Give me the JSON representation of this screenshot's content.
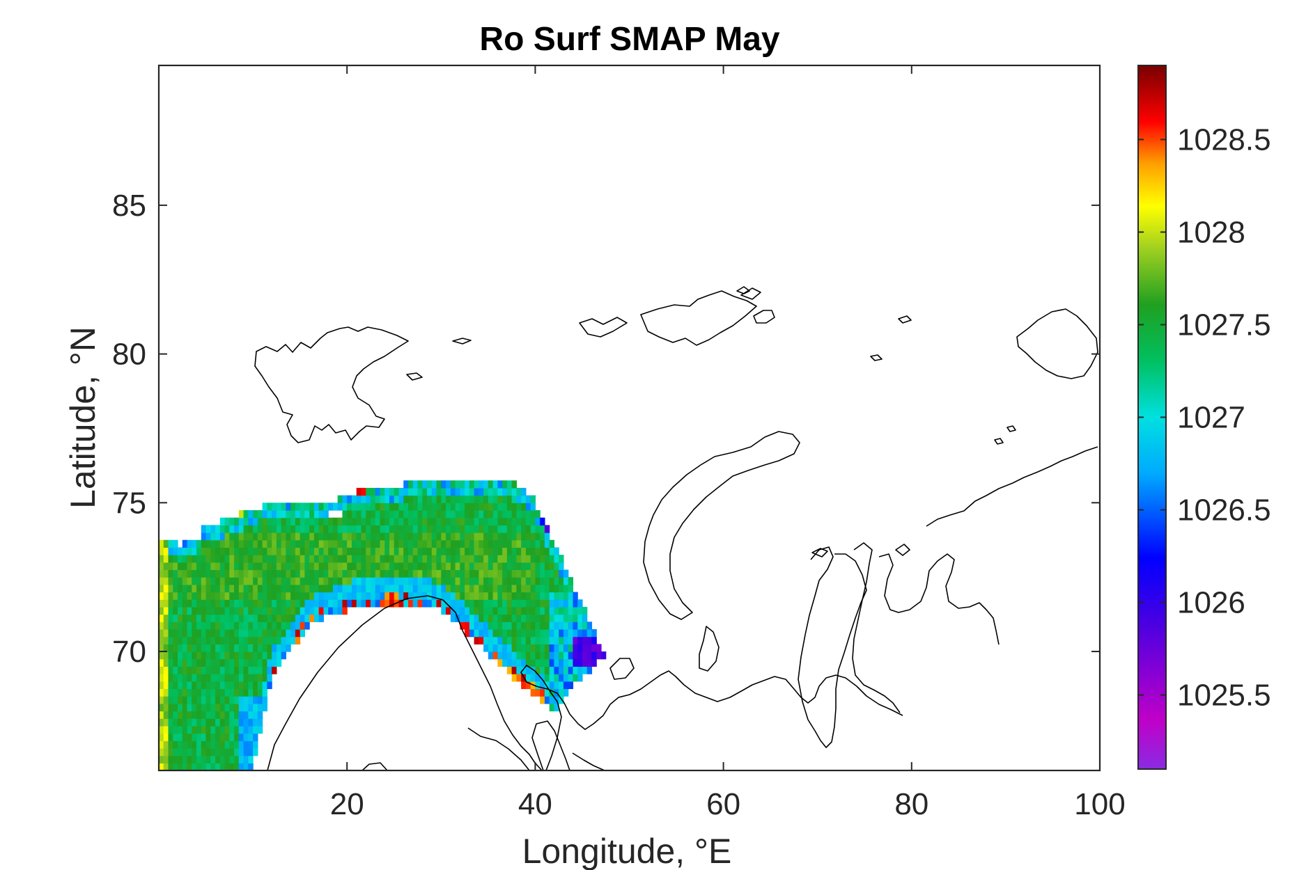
{
  "chart_data": {
    "type": "heatmap",
    "title": "Ro Surf SMAP May",
    "xlabel": "Longitude, °E",
    "ylabel": "Latitude, °N",
    "xlim": [
      0,
      100
    ],
    "ylim": [
      66,
      89.7
    ],
    "xticks": [
      20,
      40,
      60,
      80,
      100
    ],
    "yticks": [
      70,
      75,
      80,
      85
    ],
    "grid": false,
    "colorbar": {
      "location": "right",
      "colormap": "jet-like rainbow",
      "range": [
        1025.1,
        1028.9
      ],
      "ticks": [
        1025.5,
        1026,
        1026.5,
        1027,
        1027.5,
        1028,
        1028.5
      ]
    },
    "field_summary": {
      "region": "Norwegian and Barents Seas",
      "lon_range": [
        0,
        48
      ],
      "lat_range": [
        66,
        76.2
      ],
      "typical_value": 1027.5,
      "lowest_value_region": "near 45°E, 70°N (about 1025.8)",
      "highest_value_region": "coastal edges (about 1028.7)"
    }
  }
}
